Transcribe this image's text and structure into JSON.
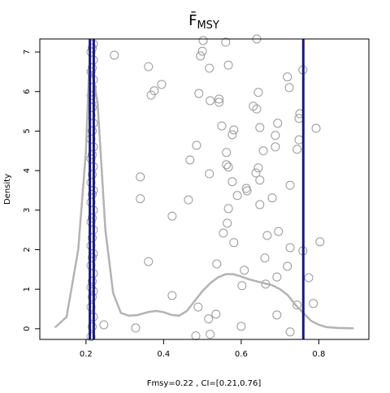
{
  "chart_data": {
    "type": "density",
    "title": "F̄",
    "title_subscript": "MSY",
    "xlabel": "Fmsy=0.22 , CI=[0.21,0.76]",
    "ylabel": "Density",
    "xlim": [
      0.081,
      0.929
    ],
    "ylim": [
      -0.27,
      7.33
    ],
    "xticks": [
      0.2,
      0.4,
      0.6,
      0.8
    ],
    "yticks": [
      0,
      1,
      2,
      3,
      4,
      5,
      6,
      7
    ],
    "density": {
      "color": "#b3b3b3",
      "x": [
        0.12,
        0.15,
        0.18,
        0.2,
        0.208,
        0.22,
        0.23,
        0.25,
        0.27,
        0.29,
        0.31,
        0.33,
        0.36,
        0.38,
        0.4,
        0.42,
        0.44,
        0.46,
        0.48,
        0.5,
        0.52,
        0.54,
        0.56,
        0.58,
        0.6,
        0.62,
        0.64,
        0.66,
        0.68,
        0.7,
        0.72,
        0.74,
        0.76,
        0.78,
        0.8,
        0.82,
        0.85,
        0.89
      ],
      "y": [
        0.03,
        0.3,
        2.0,
        4.5,
        6.6,
        6.3,
        5.7,
        2.5,
        0.9,
        0.4,
        0.33,
        0.34,
        0.42,
        0.45,
        0.42,
        0.35,
        0.33,
        0.45,
        0.7,
        0.95,
        1.15,
        1.3,
        1.38,
        1.38,
        1.32,
        1.25,
        1.2,
        1.15,
        1.1,
        1.0,
        0.85,
        0.6,
        0.4,
        0.2,
        0.1,
        0.04,
        0.02,
        0.01
      ]
    },
    "points": {
      "color": "#999999",
      "x": [
        0.213,
        0.216,
        0.219,
        0.213,
        0.216,
        0.219,
        0.213,
        0.216,
        0.219,
        0.213,
        0.216,
        0.219,
        0.213,
        0.216,
        0.219,
        0.213,
        0.216,
        0.219,
        0.213,
        0.216,
        0.219,
        0.213,
        0.216,
        0.219,
        0.213,
        0.216,
        0.219,
        0.213,
        0.216,
        0.219,
        0.213,
        0.216,
        0.219,
        0.213,
        0.216,
        0.219,
        0.213,
        0.216,
        0.219,
        0.213,
        0.216,
        0.219,
        0.273,
        0.246,
        0.328,
        0.361,
        0.376,
        0.368,
        0.395,
        0.34,
        0.34,
        0.361,
        0.422,
        0.422,
        0.464,
        0.468,
        0.485,
        0.491,
        0.489,
        0.483,
        0.502,
        0.5,
        0.495,
        0.518,
        0.52,
        0.543,
        0.543,
        0.518,
        0.535,
        0.516,
        0.52,
        0.537,
        0.56,
        0.567,
        0.55,
        0.581,
        0.577,
        0.562,
        0.562,
        0.567,
        0.577,
        0.59,
        0.613,
        0.615,
        0.567,
        0.564,
        0.554,
        0.581,
        0.608,
        0.602,
        0.6,
        0.64,
        0.644,
        0.631,
        0.64,
        0.648,
        0.657,
        0.644,
        0.638,
        0.648,
        0.648,
        0.68,
        0.667,
        0.661,
        0.663,
        0.692,
        0.696,
        0.694,
        0.688,
        0.688,
        0.692,
        0.719,
        0.724,
        0.726,
        0.726,
        0.719,
        0.726,
        0.744,
        0.749,
        0.751,
        0.749,
        0.759,
        0.759,
        0.744,
        0.774,
        0.786,
        0.793,
        0.803
      ],
      "y": [
        -0.2,
        0.05,
        0.3,
        0.55,
        0.8,
        0.95,
        1.05,
        1.2,
        1.4,
        1.6,
        1.8,
        1.9,
        2.1,
        2.3,
        2.5,
        2.7,
        2.8,
        3.0,
        3.2,
        3.4,
        3.5,
        3.7,
        3.9,
        4.1,
        4.3,
        4.4,
        4.6,
        4.8,
        5.0,
        5.2,
        5.4,
        5.6,
        5.8,
        5.9,
        6.1,
        6.3,
        6.5,
        6.6,
        6.8,
        7.0,
        7.1,
        7.2,
        6.92,
        0.1,
        0.02,
        6.63,
        6.02,
        5.91,
        6.18,
        3.84,
        3.29,
        1.7,
        2.85,
        0.84,
        3.26,
        4.27,
        4.64,
        5.95,
        0.55,
        -0.18,
        7.29,
        7.02,
        6.9,
        6.59,
        5.77,
        5.81,
        5.73,
        3.92,
        0.37,
        0.25,
        -0.14,
        1.64,
        7.25,
        6.67,
        5.13,
        5.03,
        4.91,
        4.46,
        4.15,
        4.09,
        3.72,
        3.37,
        3.55,
        3.49,
        3.04,
        2.67,
        2.42,
        2.18,
        1.48,
        1.09,
        0.06,
        7.33,
        5.98,
        5.63,
        5.56,
        5.09,
        4.5,
        4.07,
        3.94,
        3.76,
        3.14,
        3.31,
        2.36,
        1.79,
        1.13,
        1.31,
        2.46,
        5.2,
        4.89,
        4.6,
        0.35,
        6.37,
        6.1,
        3.63,
        2.05,
        1.58,
        -0.08,
        4.54,
        5.32,
        5.44,
        4.78,
        6.55,
        1.97,
        0.6,
        1.29,
        0.64,
        5.07,
        2.2
      ]
    },
    "vlines": {
      "color": "#1a1a80",
      "x": [
        0.21,
        0.22,
        0.76
      ]
    }
  }
}
